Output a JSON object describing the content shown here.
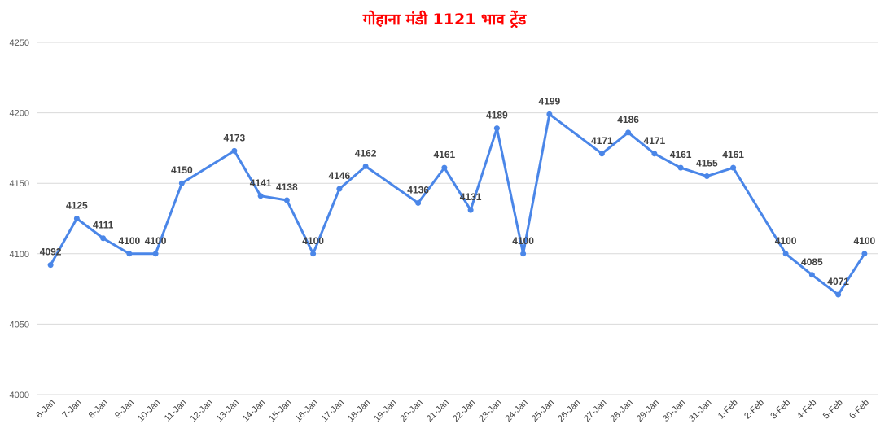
{
  "chart_data": {
    "type": "line",
    "title": "गोहाना मंडी 1121 भाव ट्रेंड",
    "categories": [
      "6-Jan",
      "7-Jan",
      "8-Jan",
      "9-Jan",
      "10-Jan",
      "11-Jan",
      "12-Jan",
      "13-Jan",
      "14-Jan",
      "15-Jan",
      "16-Jan",
      "17-Jan",
      "18-Jan",
      "19-Jan",
      "20-Jan",
      "21-Jan",
      "22-Jan",
      "23-Jan",
      "24-Jan",
      "25-Jan",
      "26-Jan",
      "27-Jan",
      "28-Jan",
      "29-Jan",
      "30-Jan",
      "31-Jan",
      "1-Feb",
      "2-Feb",
      "3-Feb",
      "4-Feb",
      "5-Feb",
      "6-Feb"
    ],
    "series": [
      {
        "values": [
          4092,
          4125,
          4111,
          4100,
          4100,
          4150,
          null,
          4173,
          4141,
          4138,
          4100,
          4146,
          4162,
          null,
          4136,
          4161,
          4131,
          4189,
          4100,
          4199,
          null,
          4171,
          4186,
          4171,
          4161,
          4155,
          4161,
          null,
          4100,
          4085,
          4071,
          4100
        ],
        "color": "#4a86e8"
      }
    ],
    "y_ticks": [
      "4000",
      "4050",
      "4100",
      "4150",
      "4200",
      "4250"
    ],
    "ylim": [
      4000,
      4250
    ],
    "grid": true,
    "legend": "none",
    "gridline_color": "#d9d9d9"
  }
}
